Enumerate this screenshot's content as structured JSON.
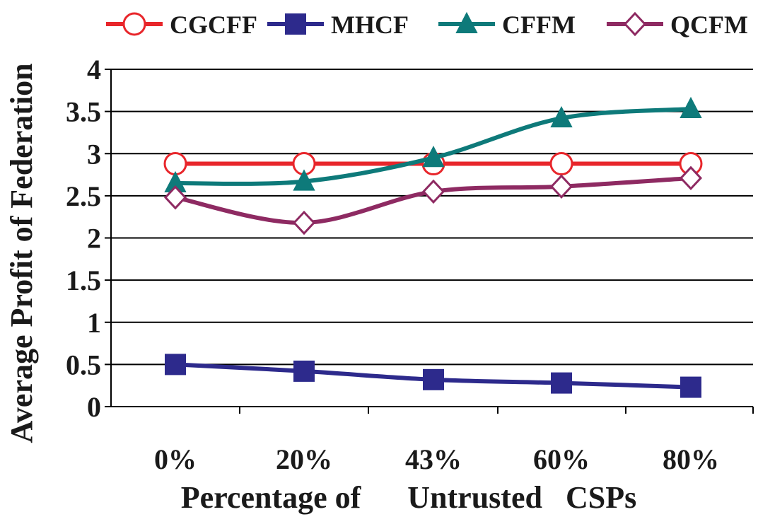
{
  "chart_data": {
    "type": "line",
    "categories": [
      "0%",
      "20%",
      "43%",
      "60%",
      "80%"
    ],
    "xlabel": "Percentage of      Untrusted   CSPs",
    "ylabel": "Average Profit of Federation",
    "ylim": [
      0,
      4
    ],
    "yticks": [
      "0",
      "0.5",
      "1",
      "1.5",
      "2",
      "2.5",
      "3",
      "3.5",
      "4"
    ],
    "grid": "horizontal",
    "legend_position": "top",
    "series": [
      {
        "name": "CGCFF",
        "values": [
          2.88,
          2.88,
          2.88,
          2.88,
          2.88
        ],
        "color": "#e8262b",
        "marker": "circle-open"
      },
      {
        "name": "MHCF",
        "values": [
          0.5,
          0.42,
          0.32,
          0.28,
          0.23
        ],
        "color": "#2d2a8c",
        "marker": "square"
      },
      {
        "name": "CFFM",
        "values": [
          2.65,
          2.67,
          2.95,
          3.42,
          3.53
        ],
        "color": "#0e7a7a",
        "marker": "triangle"
      },
      {
        "name": "QCFM",
        "values": [
          2.48,
          2.18,
          2.55,
          2.61,
          2.71
        ],
        "color": "#8e2a62",
        "marker": "diamond-open"
      }
    ]
  }
}
